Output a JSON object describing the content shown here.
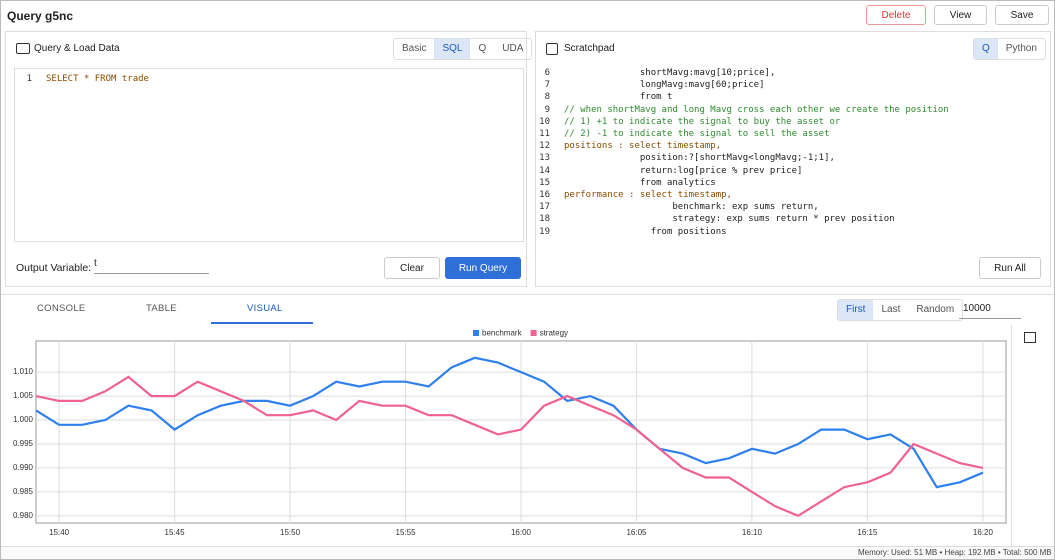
{
  "header": {
    "title": "Query g5nc",
    "buttons": [
      "Delete",
      "View",
      "Save"
    ]
  },
  "query_panel": {
    "title": "Query & Load Data",
    "tabs": [
      "Basic",
      "SQL",
      "Q",
      "UDA"
    ],
    "code": [
      {
        "n": 1,
        "text": "SELECT * FROM trade"
      }
    ],
    "output_label": "Output Variable:",
    "output_value": "t",
    "buttons": [
      "Clear",
      "Run Query"
    ]
  },
  "scratchpad": {
    "title": "Scratchpad",
    "tabs": [
      "Q",
      "Python"
    ],
    "code": [
      {
        "n": 6,
        "text": "              shortMavg:mavg[10;price],"
      },
      {
        "n": 7,
        "text": "              longMavg:mavg[60;price]"
      },
      {
        "n": 8,
        "text": "              from t"
      },
      {
        "n": 9,
        "text": "// when shortMavg and long Mavg cross each other we create the position"
      },
      {
        "n": 10,
        "text": "// 1) +1 to indicate the signal to buy the asset or"
      },
      {
        "n": 11,
        "text": "// 2) -1 to indicate the signal to sell the asset"
      },
      {
        "n": 12,
        "text": "positions : select timestamp,"
      },
      {
        "n": 13,
        "text": "              position:?[shortMavg<longMavg;-1;1],"
      },
      {
        "n": 14,
        "text": "              return:log[price % prev price]"
      },
      {
        "n": 15,
        "text": "              from analytics"
      },
      {
        "n": 16,
        "text": "performance : select timestamp,"
      },
      {
        "n": 17,
        "text": "                    benchmark: exp sums return,"
      },
      {
        "n": 18,
        "text": "                    strategy: exp sums return * prev position"
      },
      {
        "n": 19,
        "text": "                from positions"
      }
    ],
    "button": "Run All"
  },
  "results": {
    "tabs": [
      "CONSOLE",
      "TABLE",
      "VISUAL"
    ],
    "sampling": [
      "First",
      "Last",
      "Random"
    ],
    "limit": "10000"
  },
  "chart_data": {
    "type": "line",
    "x": [
      "15:39",
      "15:40",
      "15:41",
      "15:42",
      "15:43",
      "15:44",
      "15:45",
      "15:46",
      "15:47",
      "15:48",
      "15:49",
      "15:50",
      "15:51",
      "15:52",
      "15:53",
      "15:54",
      "15:55",
      "15:56",
      "15:57",
      "15:58",
      "15:59",
      "16:00",
      "16:01",
      "16:02",
      "16:03",
      "16:04",
      "16:05",
      "16:06",
      "16:07",
      "16:08",
      "16:09",
      "16:10",
      "16:11",
      "16:12",
      "16:13",
      "16:14",
      "16:15",
      "16:16",
      "16:17",
      "16:18",
      "16:19",
      "16:20"
    ],
    "series": [
      {
        "name": "benchmark",
        "color": "#2f80ed",
        "values": [
          1.002,
          0.999,
          0.999,
          1.0,
          1.003,
          1.002,
          0.998,
          1.001,
          1.003,
          1.004,
          1.004,
          1.003,
          1.005,
          1.008,
          1.007,
          1.008,
          1.008,
          1.007,
          1.011,
          1.013,
          1.012,
          1.01,
          1.008,
          1.004,
          1.005,
          1.003,
          0.998,
          0.994,
          0.993,
          0.991,
          0.992,
          0.994,
          0.993,
          0.995,
          0.998,
          0.998,
          0.996,
          0.997,
          0.994,
          0.986,
          0.987,
          0.989
        ]
      },
      {
        "name": "strategy",
        "color": "#f0628f",
        "values": [
          1.005,
          1.004,
          1.004,
          1.006,
          1.009,
          1.005,
          1.005,
          1.008,
          1.006,
          1.004,
          1.001,
          1.001,
          1.002,
          1.0,
          1.004,
          1.003,
          1.003,
          1.001,
          1.001,
          0.999,
          0.997,
          0.998,
          1.003,
          1.005,
          1.003,
          1.001,
          0.998,
          0.994,
          0.99,
          0.988,
          0.988,
          0.985,
          0.982,
          0.98,
          0.983,
          0.986,
          0.987,
          0.989,
          0.995,
          0.993,
          0.991,
          0.99
        ]
      }
    ],
    "xlim": [
      "15:39",
      "16:21"
    ],
    "xticks": [
      "15:40",
      "15:45",
      "15:50",
      "15:55",
      "16:00",
      "16:05",
      "16:10",
      "16:15",
      "16:20"
    ],
    "ylim": [
      0.9785,
      1.0165
    ],
    "yticks": [
      {
        "value": 0.98,
        "label": "0.980"
      },
      {
        "value": 0.985,
        "label": "0.985"
      },
      {
        "value": 0.99,
        "label": "0.990"
      },
      {
        "value": 0.995,
        "label": "0.995"
      },
      {
        "value": 1.0,
        "label": "1.000"
      },
      {
        "value": 1.005,
        "label": "1.005"
      },
      {
        "value": 1.01,
        "label": "1.010"
      }
    ],
    "grid": true,
    "legend": "top"
  },
  "footer": {
    "label": "Memory:",
    "text": "Used: 51 MB • Heap: 192 MB • Total: 500 MB"
  }
}
